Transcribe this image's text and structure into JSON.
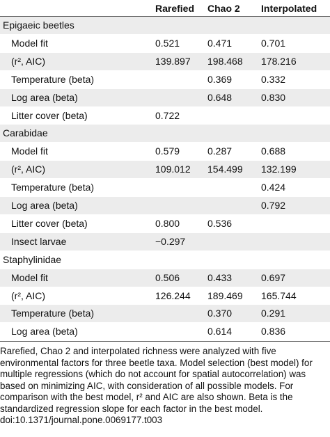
{
  "header": {
    "col1": "Rarefied",
    "col2": "Chao 2",
    "col3": "Interpolated"
  },
  "rows": [
    {
      "label": "Epigaeic beetles",
      "indent": false,
      "shade": true,
      "v1": "",
      "v2": "",
      "v3": ""
    },
    {
      "label": "Model fit",
      "indent": true,
      "shade": false,
      "v1": "0.521",
      "v2": "0.471",
      "v3": "0.701"
    },
    {
      "label": "(r², AIC)",
      "indent": true,
      "shade": true,
      "v1": "139.897",
      "v2": "198.468",
      "v3": "178.216"
    },
    {
      "label": "Temperature (beta)",
      "indent": true,
      "shade": false,
      "v1": "",
      "v2": "0.369",
      "v3": "0.332"
    },
    {
      "label": "Log area (beta)",
      "indent": true,
      "shade": true,
      "v1": "",
      "v2": "0.648",
      "v3": "0.830"
    },
    {
      "label": "Litter cover (beta)",
      "indent": true,
      "shade": false,
      "v1": "0.722",
      "v2": "",
      "v3": ""
    },
    {
      "label": "Carabidae",
      "indent": false,
      "shade": true,
      "v1": "",
      "v2": "",
      "v3": ""
    },
    {
      "label": "Model fit",
      "indent": true,
      "shade": false,
      "v1": "0.579",
      "v2": "0.287",
      "v3": "0.688"
    },
    {
      "label": "(r², AIC)",
      "indent": true,
      "shade": true,
      "v1": "109.012",
      "v2": "154.499",
      "v3": "132.199"
    },
    {
      "label": "Temperature (beta)",
      "indent": true,
      "shade": false,
      "v1": "",
      "v2": "",
      "v3": "0.424"
    },
    {
      "label": "Log area (beta)",
      "indent": true,
      "shade": true,
      "v1": "",
      "v2": "",
      "v3": "0.792"
    },
    {
      "label": "Litter cover (beta)",
      "indent": true,
      "shade": false,
      "v1": "0.800",
      "v2": "0.536",
      "v3": ""
    },
    {
      "label": "Insect larvae",
      "indent": true,
      "shade": true,
      "v1": "−0.297",
      "v2": "",
      "v3": ""
    },
    {
      "label": "Staphylinidae",
      "indent": false,
      "shade": false,
      "v1": "",
      "v2": "",
      "v3": ""
    },
    {
      "label": "Model fit",
      "indent": true,
      "shade": true,
      "v1": "0.506",
      "v2": "0.433",
      "v3": "0.697"
    },
    {
      "label": "(r², AIC)",
      "indent": true,
      "shade": false,
      "v1": "126.244",
      "v2": "189.469",
      "v3": "165.744"
    },
    {
      "label": "Temperature (beta)",
      "indent": true,
      "shade": true,
      "v1": "",
      "v2": "0.370",
      "v3": "0.291"
    },
    {
      "label": "Log area (beta)",
      "indent": true,
      "shade": false,
      "v1": "",
      "v2": "0.614",
      "v3": "0.836"
    }
  ],
  "caption": {
    "text": "Rarefied, Chao 2 and interpolated richness were analyzed with five environmental factors for three beetle taxa. Model selection (best model) for multiple regressions (which do not account for spatial autocorrelation) was based on minimizing AIC, with consideration of all possible models. For comparison with the best model, r² and AIC are also shown. Beta is the standardized regression slope for each factor in the best model.",
    "doi": "doi:10.1371/journal.pone.0069177.t003"
  }
}
